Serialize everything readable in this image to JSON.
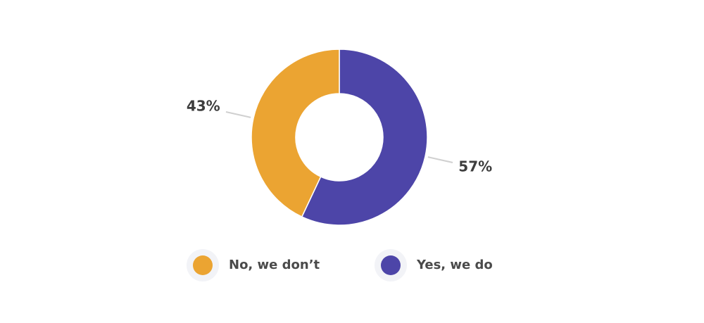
{
  "chart_data": {
    "type": "pie",
    "donut": true,
    "categories": [
      "No, we don’t",
      "Yes, we do"
    ],
    "values": [
      43,
      57
    ],
    "value_labels": [
      "43%",
      "57%"
    ],
    "colors": [
      "#eba432",
      "#4d45a8"
    ],
    "legend": "bottom"
  }
}
